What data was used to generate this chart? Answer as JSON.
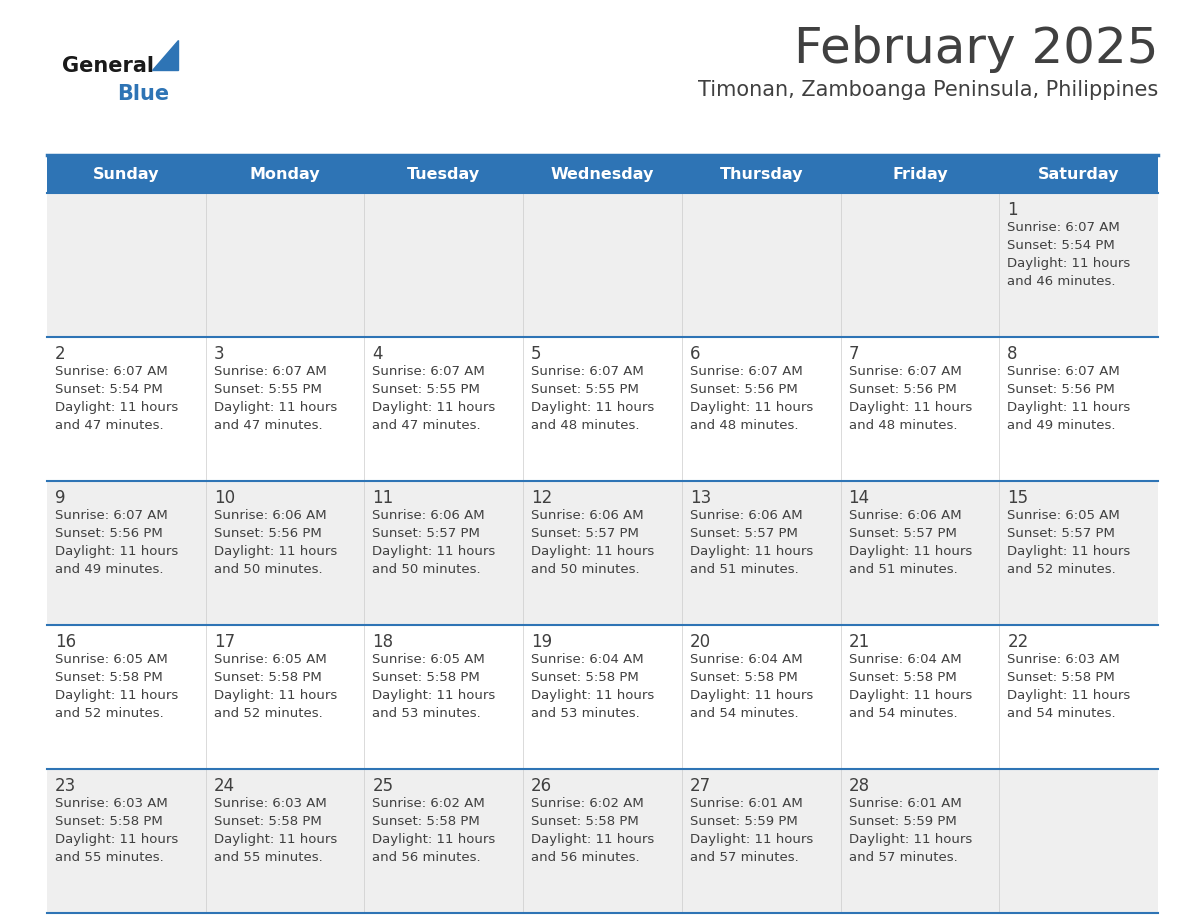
{
  "title": "February 2025",
  "subtitle": "Timonan, Zamboanga Peninsula, Philippines",
  "days_of_week": [
    "Sunday",
    "Monday",
    "Tuesday",
    "Wednesday",
    "Thursday",
    "Friday",
    "Saturday"
  ],
  "header_bg": "#2E74B5",
  "header_text": "#FFFFFF",
  "cell_bg_white": "#FFFFFF",
  "cell_bg_gray": "#EFEFEF",
  "separator_color": "#2E74B5",
  "text_color": "#404040",
  "day_num_color": "#404040",
  "logo_general_color": "#1a1a1a",
  "logo_blue_color": "#2E74B5",
  "calendar_data": [
    {
      "day": 1,
      "col": 6,
      "row": 0,
      "sunrise": "6:07 AM",
      "sunset": "5:54 PM",
      "daylight": "11 hours and 46 minutes."
    },
    {
      "day": 2,
      "col": 0,
      "row": 1,
      "sunrise": "6:07 AM",
      "sunset": "5:54 PM",
      "daylight": "11 hours and 47 minutes."
    },
    {
      "day": 3,
      "col": 1,
      "row": 1,
      "sunrise": "6:07 AM",
      "sunset": "5:55 PM",
      "daylight": "11 hours and 47 minutes."
    },
    {
      "day": 4,
      "col": 2,
      "row": 1,
      "sunrise": "6:07 AM",
      "sunset": "5:55 PM",
      "daylight": "11 hours and 47 minutes."
    },
    {
      "day": 5,
      "col": 3,
      "row": 1,
      "sunrise": "6:07 AM",
      "sunset": "5:55 PM",
      "daylight": "11 hours and 48 minutes."
    },
    {
      "day": 6,
      "col": 4,
      "row": 1,
      "sunrise": "6:07 AM",
      "sunset": "5:56 PM",
      "daylight": "11 hours and 48 minutes."
    },
    {
      "day": 7,
      "col": 5,
      "row": 1,
      "sunrise": "6:07 AM",
      "sunset": "5:56 PM",
      "daylight": "11 hours and 48 minutes."
    },
    {
      "day": 8,
      "col": 6,
      "row": 1,
      "sunrise": "6:07 AM",
      "sunset": "5:56 PM",
      "daylight": "11 hours and 49 minutes."
    },
    {
      "day": 9,
      "col": 0,
      "row": 2,
      "sunrise": "6:07 AM",
      "sunset": "5:56 PM",
      "daylight": "11 hours and 49 minutes."
    },
    {
      "day": 10,
      "col": 1,
      "row": 2,
      "sunrise": "6:06 AM",
      "sunset": "5:56 PM",
      "daylight": "11 hours and 50 minutes."
    },
    {
      "day": 11,
      "col": 2,
      "row": 2,
      "sunrise": "6:06 AM",
      "sunset": "5:57 PM",
      "daylight": "11 hours and 50 minutes."
    },
    {
      "day": 12,
      "col": 3,
      "row": 2,
      "sunrise": "6:06 AM",
      "sunset": "5:57 PM",
      "daylight": "11 hours and 50 minutes."
    },
    {
      "day": 13,
      "col": 4,
      "row": 2,
      "sunrise": "6:06 AM",
      "sunset": "5:57 PM",
      "daylight": "11 hours and 51 minutes."
    },
    {
      "day": 14,
      "col": 5,
      "row": 2,
      "sunrise": "6:06 AM",
      "sunset": "5:57 PM",
      "daylight": "11 hours and 51 minutes."
    },
    {
      "day": 15,
      "col": 6,
      "row": 2,
      "sunrise": "6:05 AM",
      "sunset": "5:57 PM",
      "daylight": "11 hours and 52 minutes."
    },
    {
      "day": 16,
      "col": 0,
      "row": 3,
      "sunrise": "6:05 AM",
      "sunset": "5:58 PM",
      "daylight": "11 hours and 52 minutes."
    },
    {
      "day": 17,
      "col": 1,
      "row": 3,
      "sunrise": "6:05 AM",
      "sunset": "5:58 PM",
      "daylight": "11 hours and 52 minutes."
    },
    {
      "day": 18,
      "col": 2,
      "row": 3,
      "sunrise": "6:05 AM",
      "sunset": "5:58 PM",
      "daylight": "11 hours and 53 minutes."
    },
    {
      "day": 19,
      "col": 3,
      "row": 3,
      "sunrise": "6:04 AM",
      "sunset": "5:58 PM",
      "daylight": "11 hours and 53 minutes."
    },
    {
      "day": 20,
      "col": 4,
      "row": 3,
      "sunrise": "6:04 AM",
      "sunset": "5:58 PM",
      "daylight": "11 hours and 54 minutes."
    },
    {
      "day": 21,
      "col": 5,
      "row": 3,
      "sunrise": "6:04 AM",
      "sunset": "5:58 PM",
      "daylight": "11 hours and 54 minutes."
    },
    {
      "day": 22,
      "col": 6,
      "row": 3,
      "sunrise": "6:03 AM",
      "sunset": "5:58 PM",
      "daylight": "11 hours and 54 minutes."
    },
    {
      "day": 23,
      "col": 0,
      "row": 4,
      "sunrise": "6:03 AM",
      "sunset": "5:58 PM",
      "daylight": "11 hours and 55 minutes."
    },
    {
      "day": 24,
      "col": 1,
      "row": 4,
      "sunrise": "6:03 AM",
      "sunset": "5:58 PM",
      "daylight": "11 hours and 55 minutes."
    },
    {
      "day": 25,
      "col": 2,
      "row": 4,
      "sunrise": "6:02 AM",
      "sunset": "5:58 PM",
      "daylight": "11 hours and 56 minutes."
    },
    {
      "day": 26,
      "col": 3,
      "row": 4,
      "sunrise": "6:02 AM",
      "sunset": "5:58 PM",
      "daylight": "11 hours and 56 minutes."
    },
    {
      "day": 27,
      "col": 4,
      "row": 4,
      "sunrise": "6:01 AM",
      "sunset": "5:59 PM",
      "daylight": "11 hours and 57 minutes."
    },
    {
      "day": 28,
      "col": 5,
      "row": 4,
      "sunrise": "6:01 AM",
      "sunset": "5:59 PM",
      "daylight": "11 hours and 57 minutes."
    }
  ]
}
